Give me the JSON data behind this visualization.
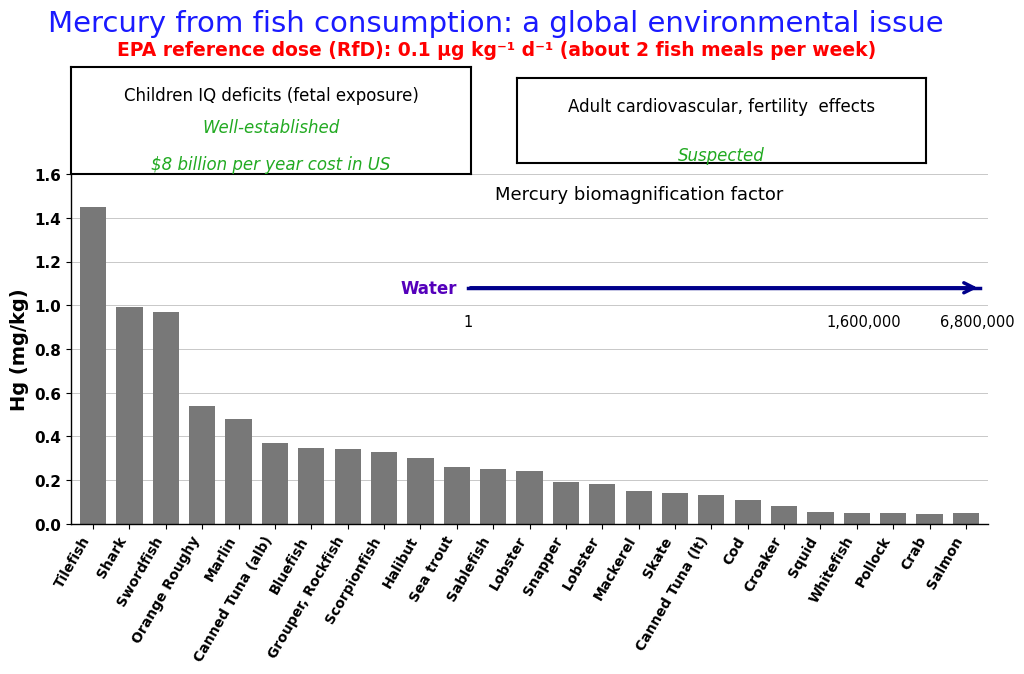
{
  "title": "Mercury from fish consumption: a global environmental issue",
  "subtitle": "EPA reference dose (RfD): 0.1 μg kg⁻¹ d⁻¹ (about 2 fish meals per week)",
  "title_color": "#1a1aff",
  "subtitle_color": "#ff0000",
  "categories": [
    "Tilefish",
    "Shark",
    "Swordfish",
    "Orange Roughy",
    "Marlin",
    "Canned Tuna (alb)",
    "Bluefish",
    "Grouper, Rockfish",
    "Scorpionfish",
    "Halibut",
    "Sea trout",
    "Sablefish",
    "Lobster",
    "Snapper",
    "Lobster",
    "Mackerel",
    "Skate",
    "Canned Tuna (lt)",
    "Cod",
    "Croaker",
    "Squid",
    "Whitefish",
    "Pollock",
    "Crab",
    "Salmon"
  ],
  "values": [
    1.45,
    0.99,
    0.97,
    0.54,
    0.48,
    0.37,
    0.345,
    0.34,
    0.33,
    0.3,
    0.26,
    0.25,
    0.24,
    0.19,
    0.18,
    0.15,
    0.14,
    0.13,
    0.11,
    0.08,
    0.055,
    0.05,
    0.05,
    0.045,
    0.05
  ],
  "bar_color": "#787878",
  "ylabel": "Hg (mg/kg)",
  "ylim": [
    0,
    1.6
  ],
  "yticks": [
    0.0,
    0.2,
    0.4,
    0.6,
    0.8,
    1.0,
    1.2,
    1.4,
    1.6
  ],
  "box1_text_line1": "Children IQ deficits (fetal exposure)",
  "box1_text_line2": "Well-established",
  "box1_text_line3": "$8 billion per year cost in US",
  "box2_text_line1": "Adult cardiovascular, fertility  effects",
  "box2_text_line2": "Suspected",
  "green_color": "#22aa22",
  "biomag_title": "Mercury biomagnification factor",
  "water_label": "Water",
  "water_color": "#5500bb",
  "arrow_color": "#00008B",
  "num1": "1",
  "num2": "1,600,000",
  "num3": "6,800,000"
}
